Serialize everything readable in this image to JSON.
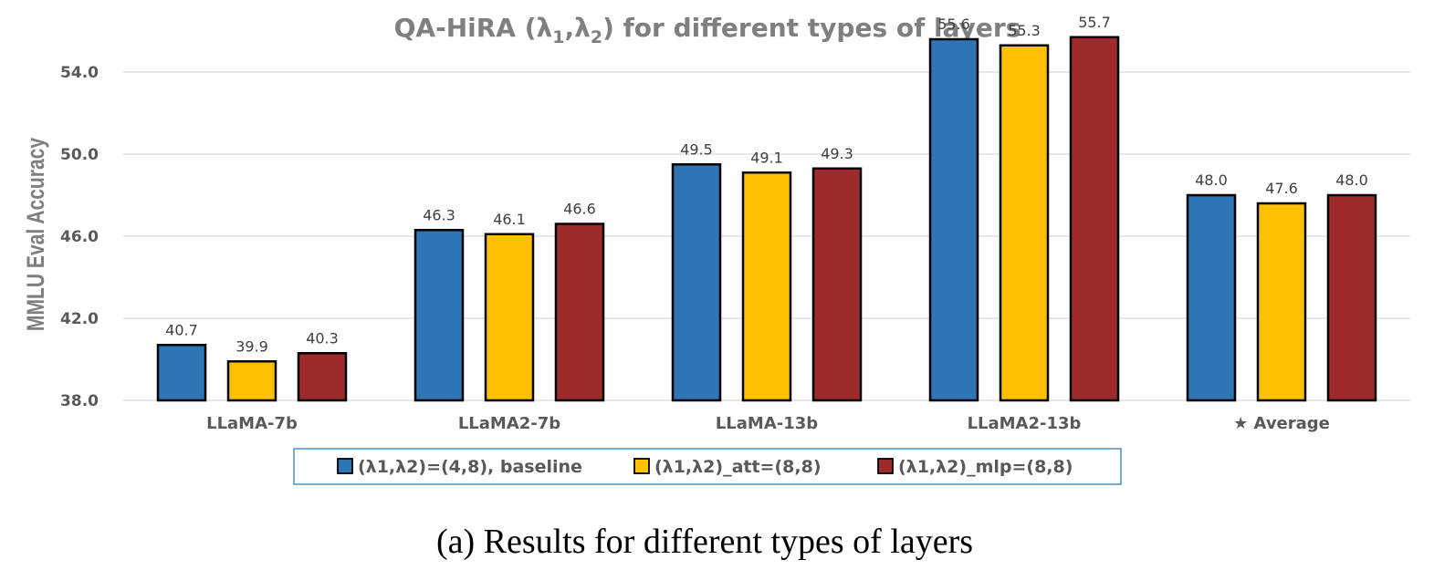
{
  "chart_data": {
    "type": "bar",
    "title": "QA-HiRA (λ1,λ2) for different types of layers",
    "ylabel": "MMLU Eval Accuracy",
    "xlabel": "",
    "ylim": [
      38.0,
      56.0
    ],
    "yticks": [
      "38.0",
      "42.0",
      "46.0",
      "50.0",
      "54.0"
    ],
    "ytick_values": [
      38,
      42,
      46,
      50,
      54
    ],
    "grid": true,
    "legend_position": "bottom-center",
    "categories": [
      "LLaMA-7b",
      "LLaMA2-7b",
      "LLaMA-13b",
      "LLaMA2-13b",
      "★ Average"
    ],
    "series": [
      {
        "name": "(λ1,λ2)=(4,8), baseline",
        "color": "#2e75b6",
        "values": [
          40.7,
          46.3,
          49.5,
          55.6,
          48.0
        ],
        "labels": [
          "40.7",
          "46.3",
          "49.5",
          "55.6",
          "48.0"
        ]
      },
      {
        "name": "(λ1,λ2)_att=(8,8)",
        "color": "#ffc000",
        "values": [
          39.9,
          46.1,
          49.1,
          55.3,
          47.6
        ],
        "labels": [
          "39.9",
          "46.1",
          "49.1",
          "55.3",
          "47.6"
        ]
      },
      {
        "name": "(λ1,λ2)_mlp=(8,8)",
        "color": "#9e2a2b",
        "values": [
          40.3,
          46.6,
          49.3,
          55.7,
          48.0
        ],
        "labels": [
          "40.3",
          "46.6",
          "49.3",
          "55.7",
          "48.0"
        ]
      }
    ]
  },
  "caption": "(a) Results for different types of layers"
}
